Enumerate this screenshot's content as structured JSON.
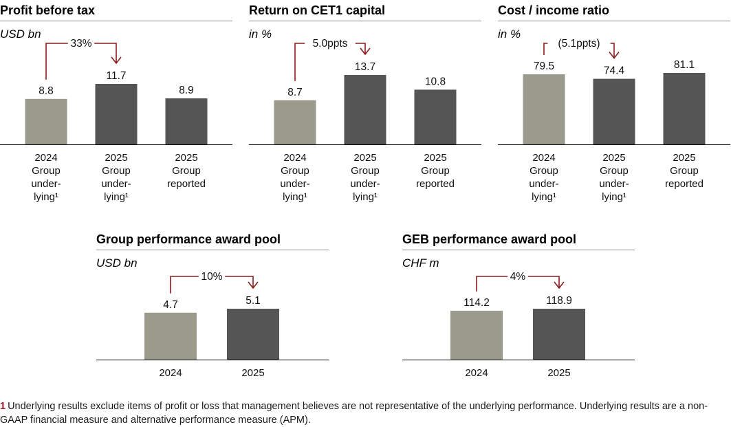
{
  "colors": {
    "light": "#9a9a8d",
    "dark": "#555555",
    "accent": "#8b1a1a",
    "axis": "#000000"
  },
  "chart_data": [
    {
      "type": "bar",
      "title": "Profit before tax",
      "unit": "USD bn",
      "bars": [
        {
          "label": [
            "2024",
            "Group",
            "under-",
            "lying¹"
          ],
          "value": 8.8,
          "value_label": "8.8",
          "color": "light"
        },
        {
          "label": [
            "2025",
            "Group",
            "under-",
            "lying¹"
          ],
          "value": 11.7,
          "value_label": "11.7",
          "color": "dark"
        },
        {
          "label": [
            "2025",
            "Group",
            "reported"
          ],
          "value": 8.9,
          "value_label": "8.9",
          "color": "dark"
        }
      ],
      "change": {
        "from": 0,
        "to": 1,
        "label": "33%"
      }
    },
    {
      "type": "bar",
      "title": "Return on CET1 capital",
      "unit": "in %",
      "bars": [
        {
          "label": [
            "2024",
            "Group",
            "under-",
            "lying¹"
          ],
          "value": 8.7,
          "value_label": "8.7",
          "color": "light"
        },
        {
          "label": [
            "2025",
            "Group",
            "under-",
            "lying¹"
          ],
          "value": 13.7,
          "value_label": "13.7",
          "color": "dark"
        },
        {
          "label": [
            "2025",
            "Group",
            "reported"
          ],
          "value": 10.8,
          "value_label": "10.8",
          "color": "dark"
        }
      ],
      "change": {
        "from": 0,
        "to": 1,
        "label": "5.0ppts"
      }
    },
    {
      "type": "bar",
      "title": "Cost / income ratio",
      "unit": "in %",
      "bars": [
        {
          "label": [
            "2024",
            "Group",
            "under-",
            "lying¹"
          ],
          "value": 79.5,
          "value_label": "79.5",
          "color": "light"
        },
        {
          "label": [
            "2025",
            "Group",
            "under-",
            "lying¹"
          ],
          "value": 74.4,
          "value_label": "74.4",
          "color": "dark"
        },
        {
          "label": [
            "2025",
            "Group",
            "reported"
          ],
          "value": 81.1,
          "value_label": "81.1",
          "color": "dark"
        }
      ],
      "change": {
        "from": 0,
        "to": 1,
        "label": "(5.1ppts)"
      }
    },
    {
      "type": "bar",
      "title": "Group performance award pool",
      "unit": "USD bn",
      "bars": [
        {
          "label": [
            "2024"
          ],
          "value": 4.7,
          "value_label": "4.7",
          "color": "light"
        },
        {
          "label": [
            "2025"
          ],
          "value": 5.1,
          "value_label": "5.1",
          "color": "dark"
        }
      ],
      "change": {
        "from": 0,
        "to": 1,
        "label": "10%"
      }
    },
    {
      "type": "bar",
      "title": "GEB performance award pool",
      "unit": "CHF m",
      "bars": [
        {
          "label": [
            "2024"
          ],
          "value": 114.2,
          "value_label": "114.2",
          "color": "light"
        },
        {
          "label": [
            "2025"
          ],
          "value": 118.9,
          "value_label": "118.9",
          "color": "dark"
        }
      ],
      "change": {
        "from": 0,
        "to": 1,
        "label": "4%"
      }
    }
  ],
  "footnote": {
    "number": "1",
    "text": "Underlying results exclude items of profit or loss that management believes are not representative of the underlying performance. Underlying results are a non-GAAP financial measure and alternative performance measure (APM)."
  }
}
